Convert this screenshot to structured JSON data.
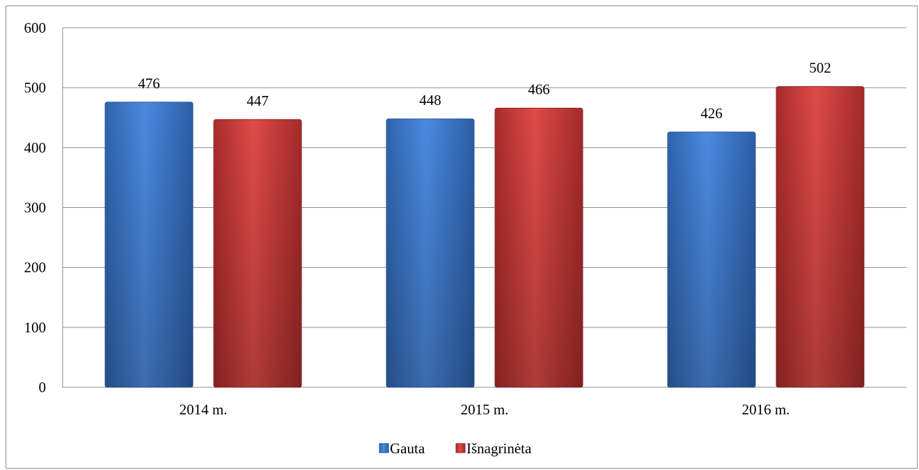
{
  "chart_data": {
    "type": "bar",
    "categories": [
      "2014 m.",
      "2015 m.",
      "2016 m."
    ],
    "series": [
      {
        "name": "Gauta",
        "values": [
          476,
          448,
          426
        ],
        "color": "#3d77c9"
      },
      {
        "name": "Išnagrinėta",
        "values": [
          447,
          466,
          502
        ],
        "color": "#c93a38"
      }
    ],
    "ylim": [
      0,
      600
    ],
    "yticks": [
      0,
      100,
      200,
      300,
      400,
      500,
      600
    ],
    "grid": true,
    "legend_position": "bottom"
  }
}
